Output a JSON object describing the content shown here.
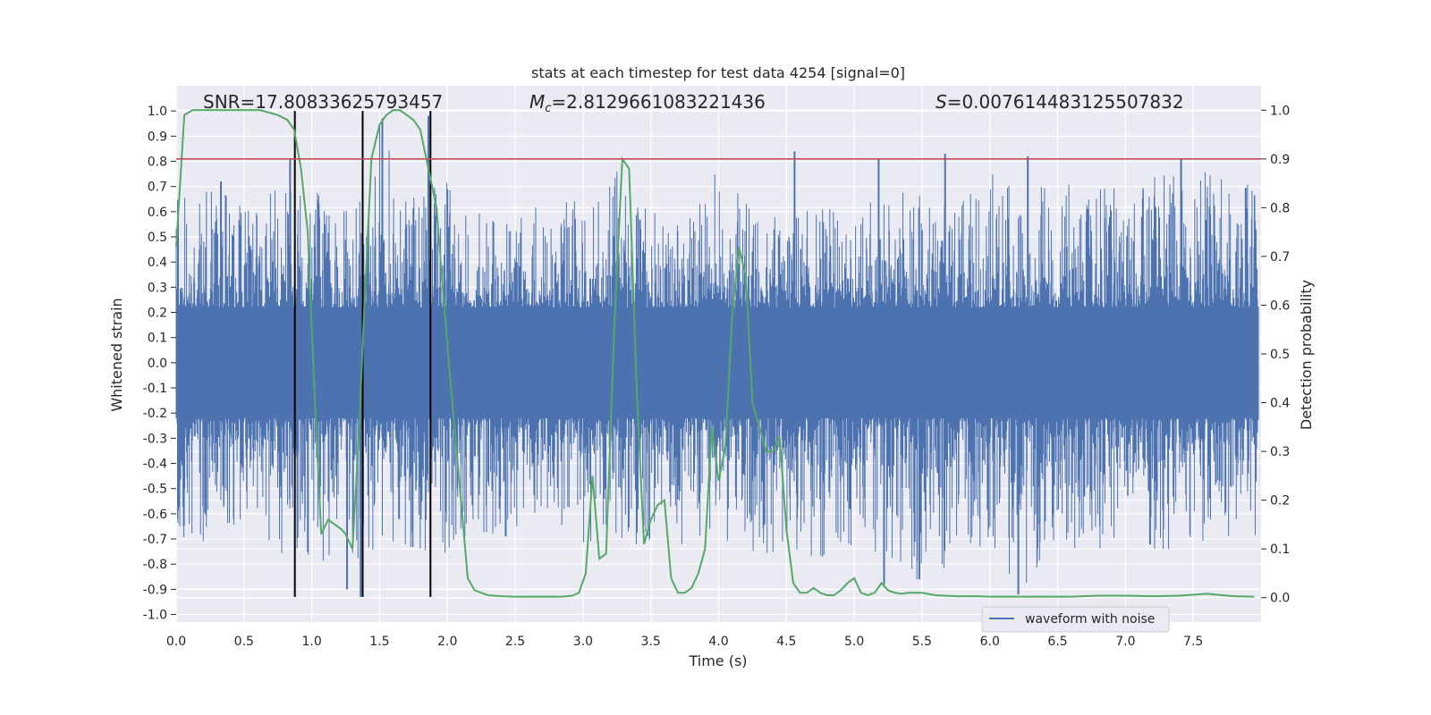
{
  "chart_data": {
    "type": "line",
    "title": "stats at each timestep for test data 4254 [signal=0]",
    "xlabel": "Time (s)",
    "ylabel": "Whitened strain",
    "ylabel_right": "Detection probability",
    "xlim": [
      0,
      8
    ],
    "ylim": [
      -1.03,
      1.1
    ],
    "ylim_right": [
      -0.05,
      1.05
    ],
    "x_ticks": [
      "0.0",
      "0.5",
      "1.0",
      "1.5",
      "2.0",
      "2.5",
      "3.0",
      "3.5",
      "4.0",
      "4.5",
      "5.0",
      "5.5",
      "6.0",
      "6.5",
      "7.0",
      "7.5"
    ],
    "y_ticks": [
      "1.0",
      "0.9",
      "0.8",
      "0.7",
      "0.6",
      "0.5",
      "0.4",
      "0.3",
      "0.2",
      "0.1",
      "0.0",
      "-0.1",
      "-0.2",
      "-0.3",
      "-0.4",
      "-0.5",
      "-0.6",
      "-0.7",
      "-0.8",
      "-0.9",
      "-1.0"
    ],
    "y_ticks_right": [
      "1.0",
      "0.9",
      "0.8",
      "0.7",
      "0.6",
      "0.5",
      "0.4",
      "0.3",
      "0.2",
      "0.1",
      "0.0"
    ],
    "annotations": {
      "snr": "SNR=17.80833625793457",
      "mc_symbol": "M",
      "mc_sub": "c",
      "mc_value": "=2.8129661083221436",
      "s_symbol": "S",
      "s_value": "=0.007614483125507832"
    },
    "legend": {
      "label": "waveform with noise",
      "location": "lower right"
    },
    "threshold": {
      "axis": "right",
      "value": 0.9,
      "color": "#c44e52"
    },
    "vertical_lines": [
      0.875,
      1.375,
      1.875
    ],
    "series": [
      {
        "name": "waveform with noise",
        "axis": "left",
        "color": "#4c72b0",
        "envelope": {
          "t": [
            0.0,
            0.25,
            0.5,
            0.75,
            1.0,
            1.25,
            1.5,
            1.75,
            2.0,
            2.25,
            2.5,
            2.75,
            3.0,
            3.25,
            3.5,
            3.75,
            4.0,
            4.25,
            4.5,
            4.75,
            5.0,
            5.25,
            5.5,
            5.75,
            6.0,
            6.25,
            6.5,
            6.75,
            7.0,
            7.25,
            7.5,
            7.75,
            8.0
          ],
          "upper": [
            0.68,
            0.76,
            0.62,
            0.72,
            0.71,
            0.62,
            0.97,
            0.66,
            0.72,
            0.65,
            0.6,
            0.63,
            0.65,
            0.76,
            0.6,
            0.65,
            0.76,
            0.62,
            0.58,
            0.63,
            0.6,
            0.7,
            0.68,
            0.65,
            0.77,
            0.72,
            0.73,
            0.77,
            0.72,
            0.75,
            0.78,
            0.72,
            0.7
          ],
          "lower": [
            -0.68,
            -0.74,
            -0.62,
            -0.75,
            -0.82,
            -0.92,
            -0.72,
            -0.78,
            -0.76,
            -0.69,
            -0.7,
            -0.62,
            -0.72,
            -0.7,
            -0.75,
            -0.74,
            -0.73,
            -0.76,
            -0.8,
            -0.78,
            -0.73,
            -0.85,
            -0.87,
            -0.8,
            -0.76,
            -0.92,
            -0.72,
            -0.76,
            -0.7,
            -0.75,
            -0.72,
            -0.72,
            -0.7
          ]
        },
        "spikes": [
          [
            0.33,
            0.72
          ],
          [
            0.84,
            0.81
          ],
          [
            1.52,
            0.97
          ],
          [
            1.86,
            0.98
          ],
          [
            4.56,
            0.84
          ],
          [
            5.18,
            0.81
          ],
          [
            5.67,
            0.83
          ],
          [
            6.28,
            0.82
          ],
          [
            7.41,
            0.81
          ],
          [
            1.36,
            -0.93
          ],
          [
            1.26,
            -0.9
          ],
          [
            5.22,
            -0.88
          ],
          [
            6.21,
            -0.92
          ],
          [
            5.48,
            -0.86
          ],
          [
            2.43,
            -0.69
          ]
        ]
      },
      {
        "name": "detection probability",
        "axis": "right",
        "color": "#55a868",
        "t": [
          0,
          0.06,
          0.12,
          0.25,
          0.5,
          0.62,
          0.75,
          0.82,
          0.87,
          0.92,
          0.97,
          1.02,
          1.07,
          1.12,
          1.17,
          1.22,
          1.25,
          1.3,
          1.35,
          1.38,
          1.44,
          1.5,
          1.55,
          1.6,
          1.65,
          1.7,
          1.75,
          1.8,
          1.86,
          1.92,
          1.97,
          2.03,
          2.1,
          2.15,
          2.2,
          2.25,
          2.3,
          2.4,
          2.5,
          2.6,
          2.75,
          2.85,
          2.92,
          2.97,
          3.02,
          3.07,
          3.12,
          3.17,
          3.23,
          3.29,
          3.34,
          3.4,
          3.45,
          3.5,
          3.55,
          3.6,
          3.65,
          3.7,
          3.75,
          3.8,
          3.85,
          3.9,
          3.95,
          4.0,
          4.05,
          4.1,
          4.15,
          4.2,
          4.25,
          4.3,
          4.35,
          4.4,
          4.45,
          4.5,
          4.55,
          4.6,
          4.65,
          4.7,
          4.75,
          4.8,
          4.85,
          4.9,
          4.95,
          5.0,
          5.05,
          5.1,
          5.15,
          5.2,
          5.25,
          5.3,
          5.35,
          5.4,
          5.5,
          5.6,
          5.75,
          5.9,
          6.0,
          6.2,
          6.4,
          6.6,
          6.8,
          7.0,
          7.2,
          7.4,
          7.6,
          7.8,
          7.95
        ],
        "p": [
          0.72,
          0.99,
          1.0,
          1.0,
          1.0,
          1.0,
          0.99,
          0.98,
          0.96,
          0.88,
          0.75,
          0.42,
          0.13,
          0.16,
          0.15,
          0.14,
          0.13,
          0.1,
          0.35,
          0.55,
          0.9,
          0.97,
          0.99,
          1.0,
          1.0,
          0.99,
          0.98,
          0.96,
          0.88,
          0.8,
          0.62,
          0.42,
          0.2,
          0.04,
          0.015,
          0.01,
          0.005,
          0.003,
          0.002,
          0.002,
          0.002,
          0.002,
          0.004,
          0.01,
          0.05,
          0.25,
          0.08,
          0.09,
          0.55,
          0.9,
          0.88,
          0.4,
          0.11,
          0.16,
          0.19,
          0.2,
          0.04,
          0.01,
          0.01,
          0.02,
          0.05,
          0.1,
          0.35,
          0.24,
          0.31,
          0.58,
          0.72,
          0.66,
          0.4,
          0.35,
          0.3,
          0.3,
          0.33,
          0.14,
          0.03,
          0.01,
          0.01,
          0.02,
          0.01,
          0.005,
          0.005,
          0.015,
          0.03,
          0.04,
          0.01,
          0.005,
          0.01,
          0.03,
          0.015,
          0.01,
          0.008,
          0.01,
          0.01,
          0.005,
          0.003,
          0.003,
          0.002,
          0.002,
          0.002,
          0.002,
          0.004,
          0.004,
          0.003,
          0.004,
          0.008,
          0.003,
          0.002
        ]
      }
    ]
  }
}
